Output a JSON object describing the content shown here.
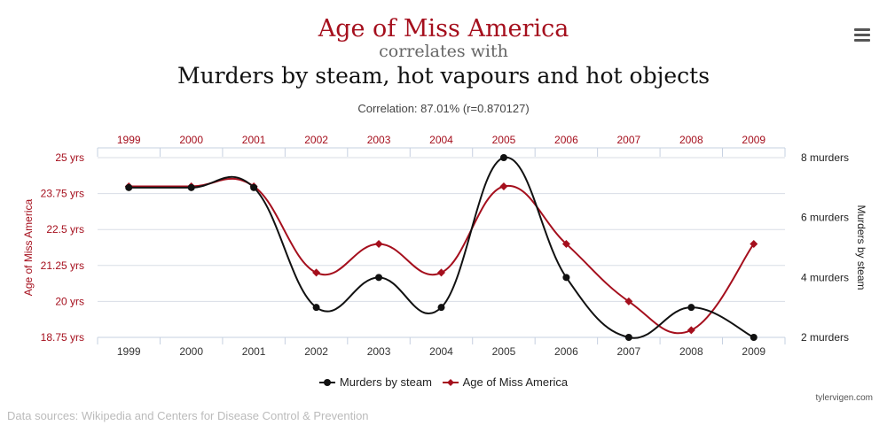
{
  "header": {
    "title_line1": "Age of Miss America",
    "title_line2": "correlates with",
    "title_line3": "Murders by steam, hot vapours and hot objects",
    "correlation": "Correlation: 87.01% (r=0.870127)"
  },
  "colors": {
    "accent": "#a50f1d",
    "secondary": "#111111",
    "subtitle": "#666666",
    "grid": "#d8dde6",
    "axis": "#c6d0e0"
  },
  "menu": {
    "icon": "hamburger-menu-icon"
  },
  "chart_data": {
    "type": "line",
    "x": [
      "1999",
      "2000",
      "2001",
      "2002",
      "2003",
      "2004",
      "2005",
      "2006",
      "2007",
      "2008",
      "2009"
    ],
    "series": [
      {
        "name": "Murders by steam",
        "axis": "right",
        "color": "#111111",
        "marker": "circle",
        "values": [
          7,
          7,
          7,
          3,
          4,
          3,
          8,
          4,
          2,
          3,
          2
        ]
      },
      {
        "name": "Age of Miss America",
        "axis": "left",
        "color": "#a50f1d",
        "marker": "diamond",
        "values": [
          24,
          24,
          24,
          21,
          22,
          21,
          24,
          22,
          20,
          19,
          22
        ]
      }
    ],
    "left_axis": {
      "label": "Age of Miss America",
      "ylim": [
        18.75,
        25
      ],
      "ticks": [
        25,
        23.75,
        22.5,
        21.25,
        20,
        18.75
      ],
      "tick_labels": [
        "25 yrs",
        "23.75 yrs",
        "22.5 yrs",
        "21.25 yrs",
        "20 yrs",
        "18.75 yrs"
      ]
    },
    "right_axis": {
      "label": "Murders by steam",
      "ylim": [
        2,
        8
      ],
      "ticks": [
        8,
        6,
        4,
        2
      ],
      "tick_labels": [
        "8 murders",
        "6 murders",
        "4 murders",
        "2 murders"
      ]
    },
    "grid": true,
    "legend": "bottom-center"
  },
  "footer": {
    "credit": "tylervigen.com",
    "sources": "Data sources: Wikipedia and Centers for Disease Control & Prevention"
  }
}
